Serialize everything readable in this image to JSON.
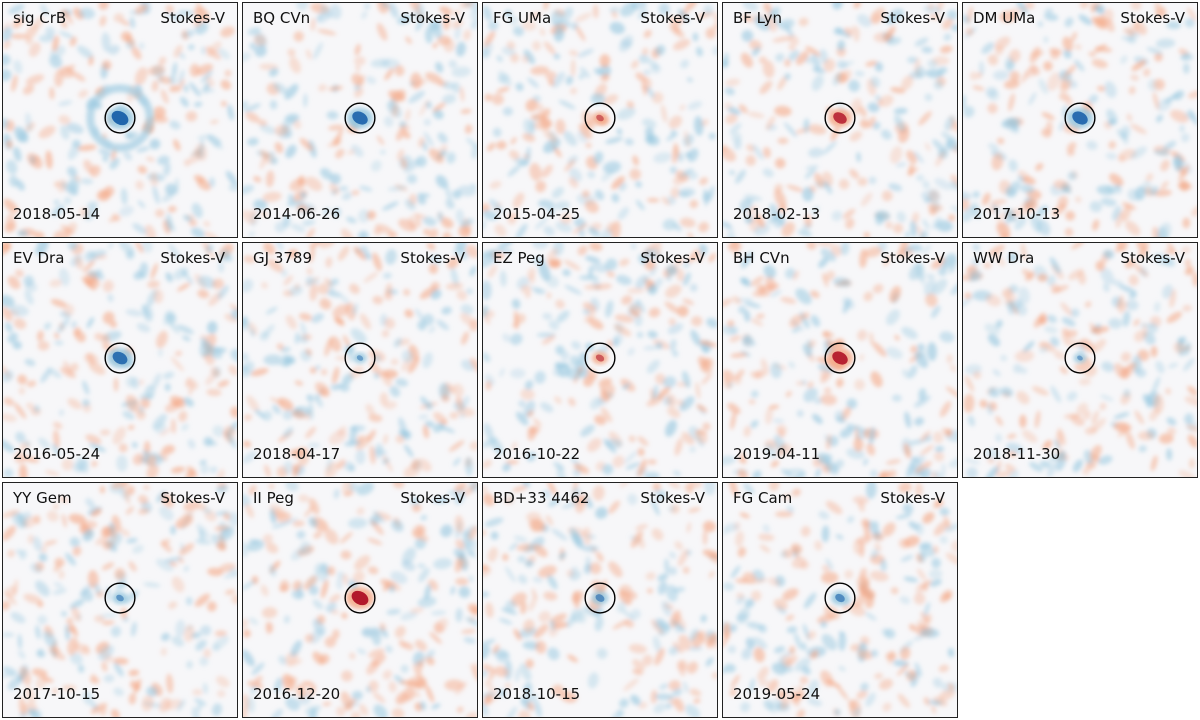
{
  "stokes_label": "Stokes-V",
  "colors": {
    "positive": "#b2182b",
    "negative": "#2166ac",
    "background": "#f7f7f9",
    "frame": "#222222"
  },
  "panels": [
    {
      "name": "sig CrB",
      "date": "2018-05-14",
      "source_sign": "negative",
      "source_strength": 1.0,
      "ring": true
    },
    {
      "name": "BQ CVn",
      "date": "2014-06-26",
      "source_sign": "negative",
      "source_strength": 0.9
    },
    {
      "name": "FG UMa",
      "date": "2015-04-25",
      "source_sign": "positive",
      "source_strength": 0.3
    },
    {
      "name": "BF Lyn",
      "date": "2018-02-13",
      "source_sign": "positive",
      "source_strength": 0.75
    },
    {
      "name": "DM UMa",
      "date": "2017-10-13",
      "source_sign": "negative",
      "source_strength": 0.9
    },
    {
      "name": "EV Dra",
      "date": "2016-05-24",
      "source_sign": "negative",
      "source_strength": 0.85
    },
    {
      "name": "GJ 3789",
      "date": "2018-04-17",
      "source_sign": "negative",
      "source_strength": 0.2
    },
    {
      "name": "EZ Peg",
      "date": "2016-10-22",
      "source_sign": "positive",
      "source_strength": 0.35
    },
    {
      "name": "BH CVn",
      "date": "2019-04-11",
      "source_sign": "positive",
      "source_strength": 0.9
    },
    {
      "name": "WW Dra",
      "date": "2018-11-30",
      "source_sign": "negative",
      "source_strength": 0.15
    },
    {
      "name": "YY Gem",
      "date": "2017-10-15",
      "source_sign": "negative",
      "source_strength": 0.3
    },
    {
      "name": "II Peg",
      "date": "2016-12-20",
      "source_sign": "positive",
      "source_strength": 1.0
    },
    {
      "name": "BD+33 4462",
      "date": "2018-10-15",
      "source_sign": "negative",
      "source_strength": 0.4
    },
    {
      "name": "FG Cam",
      "date": "2019-05-24",
      "source_sign": "negative",
      "source_strength": 0.45
    }
  ]
}
